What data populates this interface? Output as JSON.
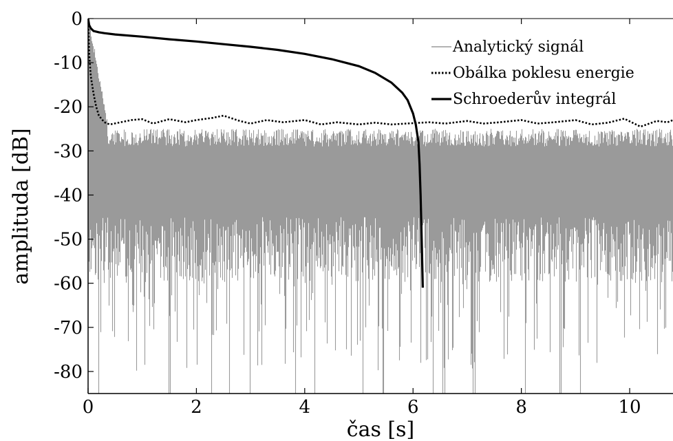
{
  "chart_data": {
    "type": "line",
    "title": "",
    "xlabel": "čas [s]",
    "ylabel": "amplituda [dB]",
    "xlim": [
      0,
      10.8
    ],
    "ylim": [
      -85,
      0
    ],
    "xticks": [
      0,
      2,
      4,
      6,
      8,
      10
    ],
    "yticks": [
      0,
      -10,
      -20,
      -30,
      -40,
      -50,
      -60,
      -70,
      -80
    ],
    "grid": false,
    "legend_position": "top-right",
    "series": [
      {
        "name": "Analytický signál",
        "style": "thin-solid",
        "color": "#9a9a9a",
        "description_values": {
          "upper_envelope_db": -25,
          "typical_floor_db": -55,
          "deepest_dips_db": -85
        },
        "x": [
          0,
          0.02,
          0.05,
          0.1,
          0.2,
          0.3,
          0.5,
          1,
          2,
          4,
          6,
          8,
          10,
          10.8
        ],
        "y": [
          0,
          -5,
          -10,
          -15,
          -20,
          -22,
          -24,
          -24,
          -24,
          -25,
          -25,
          -25,
          -25,
          -24
        ]
      },
      {
        "name": "Obálka poklesu energie",
        "style": "dotted",
        "color": "#000000",
        "x": [
          0,
          0.02,
          0.05,
          0.1,
          0.15,
          0.2,
          0.3,
          0.4,
          0.6,
          0.8,
          1.0,
          1.2,
          1.5,
          1.8,
          2.0,
          2.3,
          2.5,
          2.8,
          3.0,
          3.3,
          3.6,
          4.0,
          4.3,
          4.6,
          5.0,
          5.3,
          5.6,
          6.0,
          6.3,
          6.6,
          7.0,
          7.3,
          7.6,
          8.0,
          8.3,
          8.6,
          9.0,
          9.3,
          9.6,
          9.9,
          10.2,
          10.5,
          10.7,
          10.8
        ],
        "y": [
          0,
          -8,
          -13,
          -17,
          -20,
          -22,
          -23.5,
          -24,
          -23.5,
          -23,
          -22.8,
          -23.8,
          -22.8,
          -23.5,
          -23,
          -22.5,
          -22,
          -23.2,
          -23.8,
          -23,
          -23.5,
          -23,
          -24,
          -23.5,
          -24,
          -23.6,
          -24,
          -23.7,
          -23.5,
          -23.8,
          -23.2,
          -23.8,
          -23.5,
          -23,
          -23.8,
          -23.5,
          -23,
          -24,
          -23.6,
          -22.7,
          -24.5,
          -23.2,
          -23.5,
          -23
        ]
      },
      {
        "name": "Schroederův integrál",
        "style": "thick-solid",
        "color": "#000000",
        "x": [
          0,
          0.02,
          0.05,
          0.1,
          0.2,
          0.3,
          0.5,
          1.0,
          1.5,
          2.0,
          2.5,
          3.0,
          3.5,
          4.0,
          4.5,
          5.0,
          5.3,
          5.6,
          5.8,
          5.9,
          6.0,
          6.05,
          6.1,
          6.12,
          6.14,
          6.16,
          6.18
        ],
        "y": [
          0,
          -1.5,
          -2.2,
          -2.8,
          -3.1,
          -3.3,
          -3.6,
          -4.1,
          -4.7,
          -5.2,
          -5.8,
          -6.4,
          -7.1,
          -8.0,
          -9.2,
          -10.8,
          -12.3,
          -14.5,
          -16.8,
          -18.5,
          -21.5,
          -24,
          -28,
          -33,
          -40,
          -50,
          -61
        ]
      }
    ]
  }
}
